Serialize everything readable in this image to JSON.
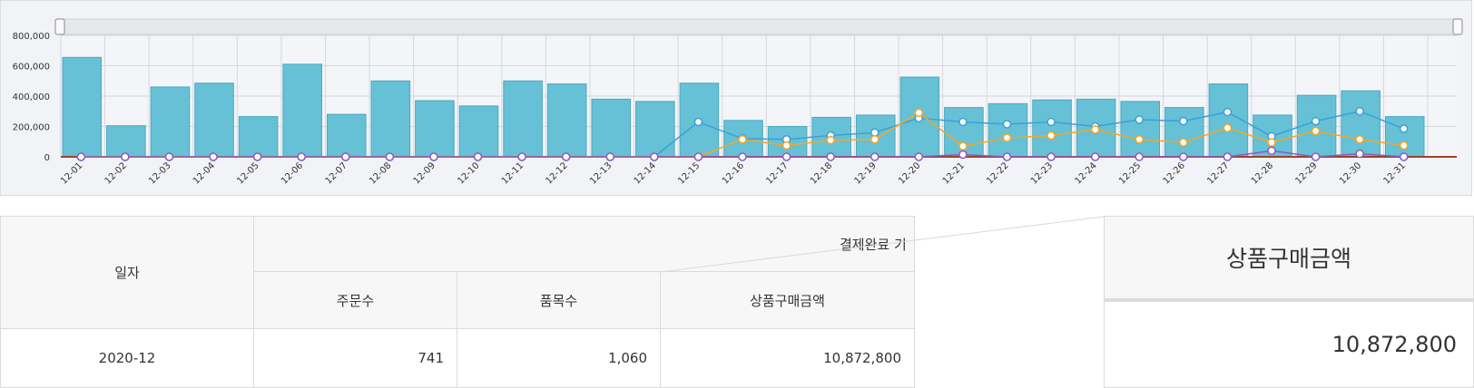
{
  "colors": {
    "bar": "#66c1d6",
    "bar_stroke": "#4aa9c0",
    "line_blue": "#3aa0d8",
    "line_orange": "#f5a623",
    "line_purple": "#8a5cc0",
    "line_baseline": "#a0402a"
  },
  "chart_data": {
    "type": "bar",
    "categories": [
      "12-01",
      "12-02",
      "12-03",
      "12-04",
      "12-05",
      "12-06",
      "12-07",
      "12-08",
      "12-09",
      "12-10",
      "12-11",
      "12-12",
      "12-13",
      "12-14",
      "12-15",
      "12-16",
      "12-17",
      "12-18",
      "12-19",
      "12-20",
      "12-21",
      "12-22",
      "12-23",
      "12-24",
      "12-25",
      "12-26",
      "12-27",
      "12-28",
      "12-29",
      "12-30",
      "12-31"
    ],
    "series": [
      {
        "type": "bar",
        "values": [
          655000,
          205000,
          460000,
          485000,
          265000,
          610000,
          280000,
          500000,
          370000,
          335000,
          500000,
          480000,
          380000,
          365000,
          485000,
          240000,
          200000,
          260000,
          275000,
          525000,
          325000,
          350000,
          375000,
          380000,
          365000,
          325000,
          480000,
          275000,
          405000,
          435000,
          265000
        ]
      },
      {
        "type": "line",
        "color": "line_blue",
        "values": [
          0,
          0,
          0,
          0,
          0,
          0,
          0,
          0,
          0,
          0,
          0,
          0,
          0,
          0,
          230000,
          120000,
          115000,
          140000,
          160000,
          255000,
          230000,
          215000,
          230000,
          200000,
          245000,
          235000,
          295000,
          135000,
          235000,
          300000,
          185000
        ]
      },
      {
        "type": "line",
        "color": "line_orange",
        "values": [
          0,
          0,
          0,
          0,
          0,
          0,
          0,
          0,
          0,
          0,
          0,
          0,
          0,
          0,
          0,
          115000,
          75000,
          110000,
          115000,
          290000,
          70000,
          125000,
          140000,
          180000,
          115000,
          95000,
          190000,
          95000,
          170000,
          115000,
          75000
        ]
      },
      {
        "type": "line",
        "color": "line_purple",
        "values": [
          0,
          0,
          0,
          0,
          0,
          0,
          0,
          0,
          0,
          0,
          0,
          0,
          0,
          0,
          0,
          0,
          0,
          0,
          0,
          0,
          15000,
          0,
          0,
          0,
          0,
          0,
          0,
          40000,
          0,
          20000,
          0
        ]
      }
    ],
    "ylim": [
      0,
      800000
    ],
    "yticks": [
      "800,000",
      "600,000",
      "400,000",
      "200,000",
      "0"
    ],
    "grid": true
  },
  "table": {
    "header_date": "일자",
    "header_group": "결제완료 기",
    "header_orders": "주문수",
    "header_items": "품목수",
    "header_amount": "상품구매금액",
    "rows": [
      {
        "date": "2020-12",
        "orders": "741",
        "items": "1,060",
        "amount": "10,872,800"
      }
    ]
  },
  "zoom": {
    "header": "상품구매금액",
    "value": "10,872,800"
  }
}
